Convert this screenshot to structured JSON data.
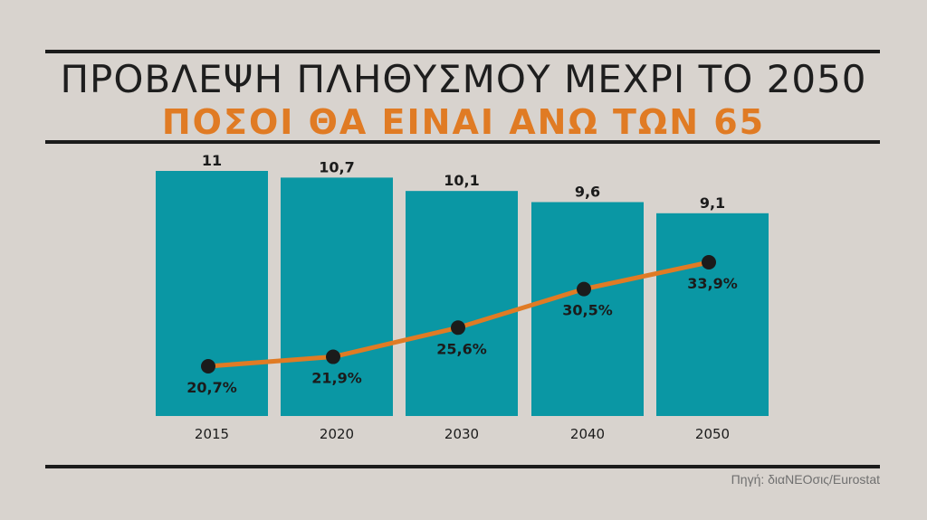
{
  "header": {
    "title": "ΠΡΟΒΛΕΨΗ ΠΛΗΘΥΣΜΟΥ ΜΕΧΡΙ ΤΟ 2050",
    "subtitle": "ΠΟΣΟΙ ΘΑ ΕΙΝΑΙ ΑΝΩ ΤΩΝ 65"
  },
  "source": "Πηγή: διαΝΕΟσις/Eurostat",
  "colors": {
    "background": "#d8d3ce",
    "bar": "#0a97a4",
    "line": "#e07b24",
    "marker": "#1b1b1b",
    "subtitle": "#e07b24"
  },
  "chart_data": {
    "type": "bar",
    "categories": [
      "2015",
      "2020",
      "2030",
      "2040",
      "2050"
    ],
    "series": [
      {
        "type": "bar",
        "values": [
          11,
          10.7,
          10.1,
          9.6,
          9.1
        ],
        "labels": [
          "11",
          "10,7",
          "10,1",
          "9,6",
          "9,1"
        ]
      },
      {
        "type": "line",
        "values": [
          20.7,
          21.9,
          25.6,
          30.5,
          33.9
        ],
        "labels": [
          "20,7%",
          "21,9%",
          "25,6%",
          "30,5%",
          "33,9%"
        ]
      }
    ],
    "grid": false
  }
}
